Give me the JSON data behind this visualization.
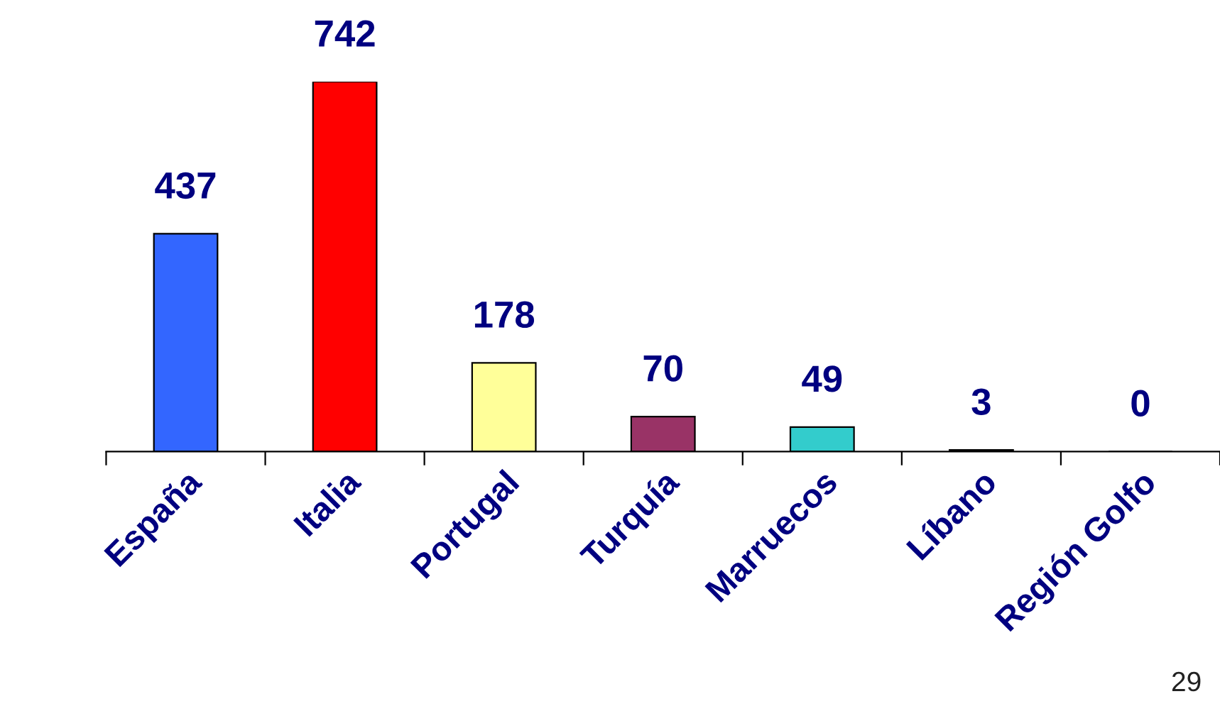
{
  "chart_data": {
    "type": "bar",
    "categories": [
      "España",
      "Italia",
      "Portugal",
      "Turquía",
      "Marruecos",
      "Líbano",
      "Región Golfo"
    ],
    "values": [
      437,
      742,
      178,
      70,
      49,
      3,
      0
    ],
    "colors": [
      "#3366ff",
      "#ff0000",
      "#ffff99",
      "#993366",
      "#33cccc",
      "#000080",
      "#999999"
    ],
    "data_labels": true,
    "grid": false,
    "legend": false,
    "annotations": [
      "29"
    ]
  }
}
